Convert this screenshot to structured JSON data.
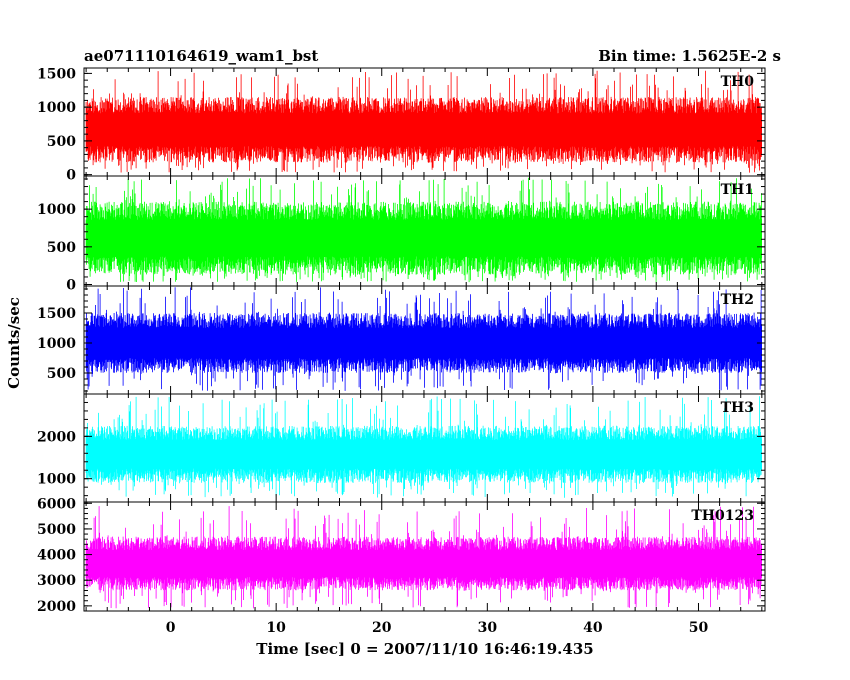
{
  "title_left": "ae071110164619_wam1_bst",
  "title_right": "Bin time: 1.5625E-2 s",
  "ylabel": "Counts/sec",
  "xlabel": "Time [sec] 0 = 2007/11/10 16:46:19.435",
  "chart_data": {
    "type": "line",
    "x_range": [
      -8.2,
      56.3
    ],
    "x_data_range": [
      -8.0,
      56.0
    ],
    "x_ticks": [
      0,
      10,
      20,
      30,
      40,
      50
    ],
    "bin_time_s": 0.015625,
    "grid": false,
    "panels": [
      {
        "name": "TH0",
        "color": "#ff0000",
        "ylim": [
          -20,
          1580
        ],
        "y_ticks": [
          0,
          500,
          1000,
          1500
        ],
        "typical_low": 180,
        "typical_high": 1150,
        "min": 30,
        "max": 1550
      },
      {
        "name": "TH1",
        "color": "#00ff00",
        "ylim": [
          -20,
          1440
        ],
        "y_ticks": [
          0,
          500,
          1000
        ],
        "typical_low": 130,
        "typical_high": 1100,
        "min": 30,
        "max": 1420
      },
      {
        "name": "TH2",
        "color": "#0000ff",
        "ylim": [
          150,
          1950
        ],
        "y_ticks": [
          500,
          1000,
          1500
        ],
        "typical_low": 500,
        "typical_high": 1500,
        "min": 200,
        "max": 1930
      },
      {
        "name": "TH3",
        "color": "#00ffff",
        "ylim": [
          450,
          3000
        ],
        "y_ticks": [
          1000,
          2000
        ],
        "typical_low": 900,
        "typical_high": 2250,
        "min": 550,
        "max": 2950
      },
      {
        "name": "TH0123",
        "color": "#ff00ff",
        "ylim": [
          1800,
          6050
        ],
        "y_ticks": [
          2000,
          3000,
          4000,
          5000,
          6000
        ],
        "typical_low": 2600,
        "typical_high": 4700,
        "min": 1900,
        "max": 5900
      }
    ]
  }
}
